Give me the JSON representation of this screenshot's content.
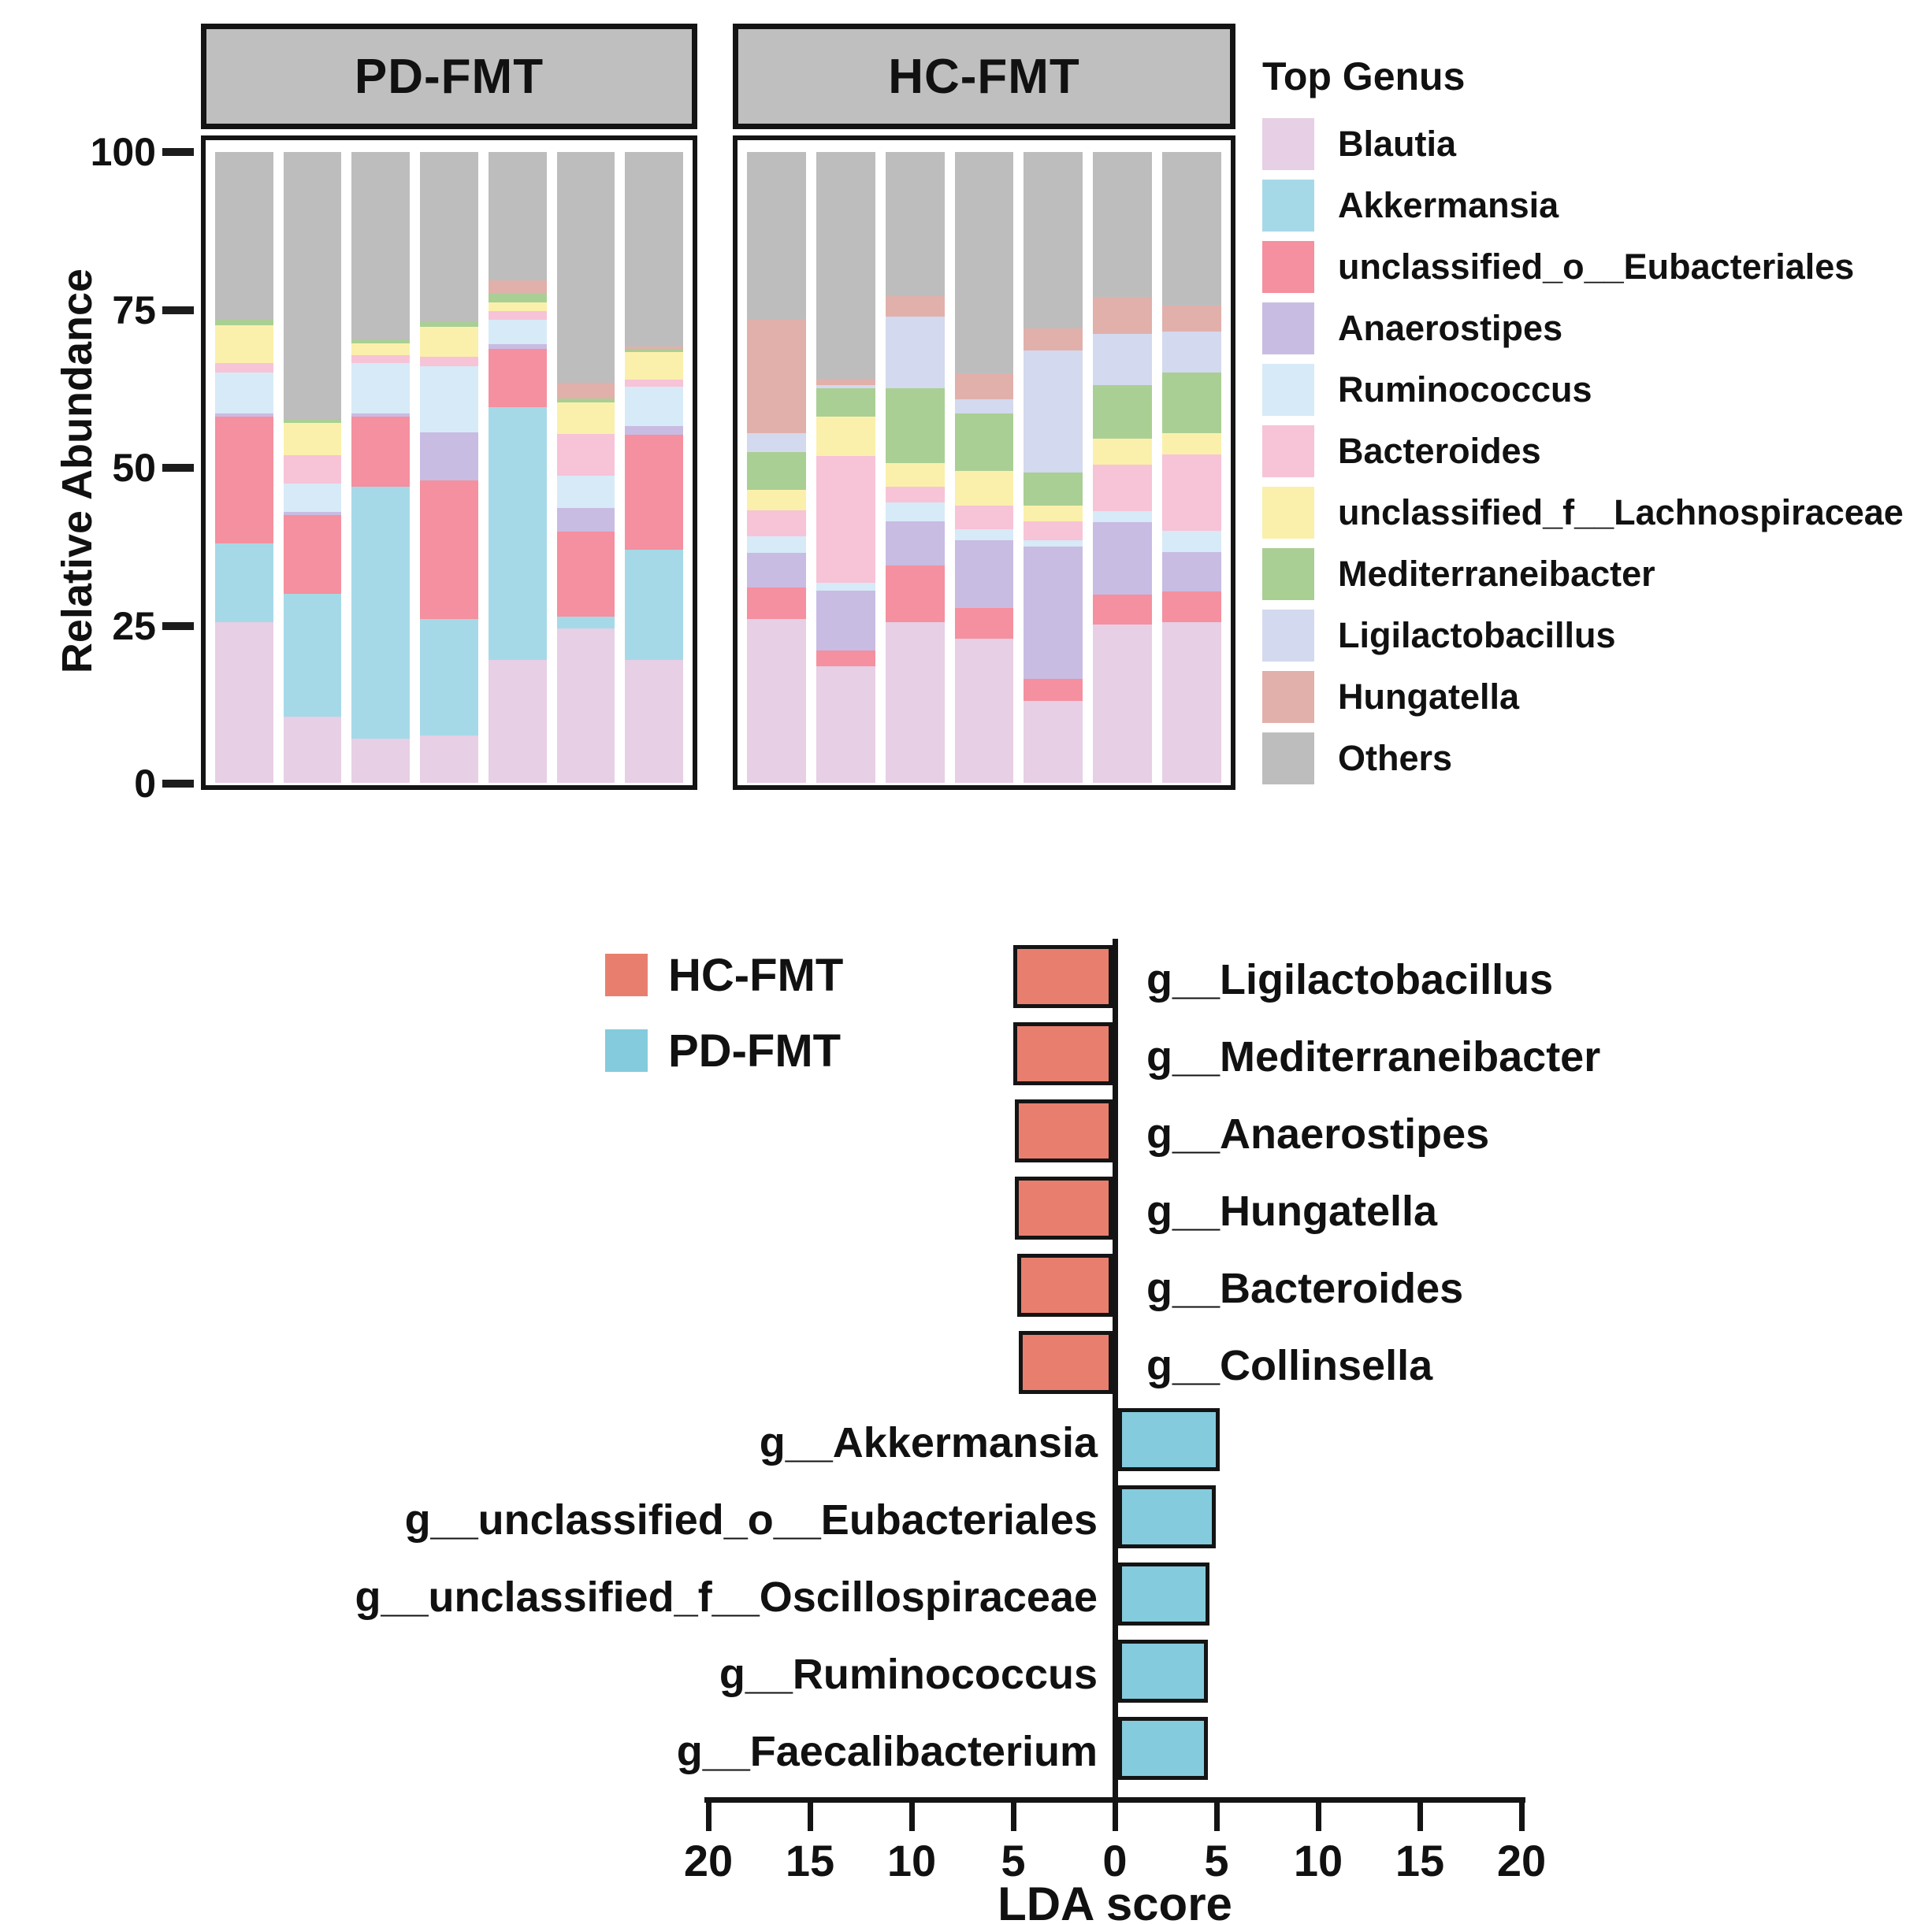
{
  "chart_data": [
    {
      "id": "relative-abundance",
      "type": "bar",
      "stacked": true,
      "ylabel": "Relative Abundance",
      "ylim": [
        0,
        100
      ],
      "yticks": [
        100,
        75,
        50,
        25,
        0
      ],
      "grid": false,
      "legend_title": "Top Genus",
      "legend_position": "right",
      "series_names": [
        "Blautia",
        "Akkermansia",
        "unclassified_o__Eubacteriales",
        "Anaerostipes",
        "Ruminococcus",
        "Bacteroides",
        "unclassified_f__Lachnospiraceae",
        "Mediterraneibacter",
        "Ligilactobacillus",
        "Hungatella",
        "Others"
      ],
      "colors": {
        "Blautia": "#e7cfe5",
        "Akkermansia": "#a6d9e7",
        "unclassified_o__Eubacteriales": "#f4909f",
        "Anaerostipes": "#c8bce3",
        "Ruminococcus": "#d7eaf7",
        "Bacteroides": "#f7c3d7",
        "unclassified_f__Lachnospiraceae": "#fbf0ab",
        "Mediterraneibacter": "#aacf94",
        "Ligilactobacillus": "#d3d9ee",
        "Hungatella": "#e1b0ab",
        "Others": "#bdbdbd"
      },
      "header_fill": "#bfbfbf",
      "panels": [
        {
          "label": "PD-FMT",
          "samples": [
            [
              25.5,
              12.5,
              20.0,
              0.6,
              6.4,
              1.5,
              6.1,
              0.8,
              0,
              0,
              26.6
            ],
            [
              10.5,
              19.5,
              12.5,
              0.5,
              4.5,
              4.5,
              5.0,
              0.5,
              0,
              0,
              42.5
            ],
            [
              7.0,
              40.0,
              11.0,
              0.5,
              8.0,
              1.3,
              1.9,
              0.6,
              0,
              0,
              29.7
            ],
            [
              7.5,
              18.5,
              22.0,
              7.5,
              10.5,
              1.5,
              4.8,
              0.7,
              0,
              0,
              27.0
            ],
            [
              19.5,
              40.0,
              9.3,
              0.8,
              3.8,
              1.4,
              1.3,
              1.6,
              0,
              2.0,
              20.3
            ],
            [
              24.5,
              1.8,
              13.5,
              3.8,
              5.1,
              6.6,
              5.0,
              0.6,
              0,
              2.5,
              36.6
            ],
            [
              19.5,
              17.5,
              18.2,
              1.3,
              6.3,
              1.1,
              4.4,
              0.5,
              0,
              0.4,
              30.8
            ]
          ]
        },
        {
          "label": "HC-FMT",
          "samples": [
            [
              26.0,
              0,
              5.0,
              5.5,
              2.6,
              4.1,
              3.3,
              5.9,
              3.0,
              18.1,
              26.5
            ],
            [
              18.5,
              0,
              2.5,
              9.5,
              1.2,
              20.1,
              6.3,
              4.4,
              0.5,
              1.0,
              36.0
            ],
            [
              25.5,
              0,
              8.9,
              7.0,
              3.0,
              2.6,
              3.7,
              11.8,
              11.4,
              3.3,
              22.8
            ],
            [
              22.9,
              0,
              4.8,
              10.7,
              1.8,
              3.7,
              5.5,
              9.2,
              2.2,
              4.1,
              35.1
            ],
            [
              13.0,
              0,
              3.5,
              21.0,
              1.0,
              3.0,
              2.5,
              5.2,
              19.3,
              3.5,
              28.0
            ],
            [
              25.1,
              0,
              4.8,
              11.4,
              1.8,
              7.4,
              4.1,
              8.5,
              8.1,
              5.9,
              22.9
            ],
            [
              25.5,
              0,
              4.8,
              6.3,
              3.3,
              12.2,
              3.3,
              9.6,
              6.6,
              4.1,
              24.3
            ]
          ]
        }
      ]
    },
    {
      "id": "lda-score",
      "type": "bar",
      "orientation": "horizontal",
      "diverging": true,
      "xlabel": "LDA score",
      "xlim": [
        -20,
        20
      ],
      "xtick_labels": [
        "20",
        "15",
        "10",
        "5",
        "0",
        "5",
        "10",
        "15",
        "20"
      ],
      "xtick_values": [
        -20,
        -15,
        -10,
        -5,
        0,
        5,
        10,
        15,
        20
      ],
      "series": [
        {
          "name": "HC-FMT",
          "color": "#e87f6e",
          "direction": "negative",
          "bars": [
            {
              "label": "g__Ligilactobacillus",
              "value": 4.9
            },
            {
              "label": "g__Mediterraneibacter",
              "value": 4.9
            },
            {
              "label": "g__Anaerostipes",
              "value": 4.8
            },
            {
              "label": "g__Hungatella",
              "value": 4.8
            },
            {
              "label": "g__Bacteroides",
              "value": 4.7
            },
            {
              "label": "g__Collinsella",
              "value": 4.6
            }
          ]
        },
        {
          "name": "PD-FMT",
          "color": "#84cbdd",
          "direction": "positive",
          "bars": [
            {
              "label": "g__Akkermansia",
              "value": 5.0
            },
            {
              "label": "g__unclassified_o__Eubacteriales",
              "value": 4.8
            },
            {
              "label": "g__unclassified_f__Oscillospiraceae",
              "value": 4.5
            },
            {
              "label": "g__Ruminococcus",
              "value": 4.4
            },
            {
              "label": "g__Faecalibacterium",
              "value": 4.4
            }
          ]
        }
      ]
    }
  ]
}
